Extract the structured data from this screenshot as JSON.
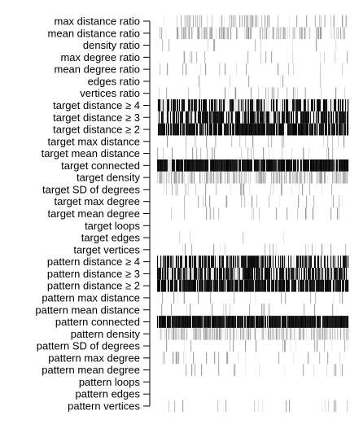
{
  "chart_data": {
    "type": "heatmap",
    "title": "",
    "xlabel": "",
    "ylabel": "",
    "colormap": [
      "#ffffff",
      "#000000"
    ],
    "grid": false,
    "legend": "none",
    "rows": [
      "max distance ratio",
      "mean distance ratio",
      "density ratio",
      "max degree ratio",
      "mean degree ratio",
      "edges ratio",
      "vertices ratio",
      "target distance ≥ 4",
      "target distance ≥ 3",
      "target distance ≥ 2",
      "target max distance",
      "target mean distance",
      "target connected",
      "target density",
      "target SD of degrees",
      "target max degree",
      "target mean degree",
      "target loops",
      "target edges",
      "target vertices",
      "pattern distance ≥ 4",
      "pattern distance ≥ 3",
      "pattern distance ≥ 2",
      "pattern max distance",
      "pattern mean distance",
      "pattern connected",
      "pattern density",
      "pattern SD of degrees",
      "pattern max degree",
      "pattern mean degree",
      "pattern loops",
      "pattern edges",
      "pattern vertices"
    ],
    "row_mean_intensity": [
      0.12,
      0.2,
      0.03,
      0.02,
      0.03,
      0.02,
      0.05,
      0.55,
      0.65,
      0.82,
      0.04,
      0.05,
      0.9,
      0.3,
      0.05,
      0.05,
      0.05,
      0.0,
      0.01,
      0.04,
      0.55,
      0.65,
      0.82,
      0.03,
      0.04,
      0.9,
      0.25,
      0.04,
      0.04,
      0.04,
      0.0,
      0.0,
      0.04
    ]
  }
}
